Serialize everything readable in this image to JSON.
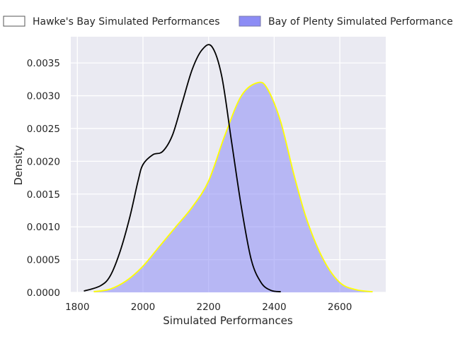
{
  "chart_data": {
    "type": "area",
    "title": "",
    "xlabel": "Simulated Performances",
    "ylabel": "Density",
    "xlim": [
      1780,
      2740
    ],
    "ylim": [
      0,
      0.0039
    ],
    "xticks": [
      1800,
      2000,
      2200,
      2400,
      2600
    ],
    "xtick_labels": [
      "1800",
      "2000",
      "2200",
      "2400",
      "2600"
    ],
    "yticks": [
      0,
      0.0005,
      0.001,
      0.0015,
      0.002,
      0.0025,
      0.003,
      0.0035
    ],
    "ytick_labels": [
      "0.0000",
      "0.0005",
      "0.0010",
      "0.0015",
      "0.0020",
      "0.0025",
      "0.0030",
      "0.0035"
    ],
    "grid": true,
    "legend_position": "top",
    "series": [
      {
        "name": "Hawke's Bay Simulated Performances",
        "style": "line",
        "color": "#000000",
        "fill": "none",
        "x": [
          1820,
          1870,
          1900,
          1930,
          1960,
          1985,
          2000,
          2030,
          2060,
          2090,
          2120,
          2150,
          2180,
          2210,
          2240,
          2270,
          2300,
          2330,
          2360,
          2390,
          2420
        ],
        "y": [
          2e-05,
          0.0001,
          0.00025,
          0.00062,
          0.00115,
          0.0017,
          0.00195,
          0.0021,
          0.00215,
          0.0024,
          0.0029,
          0.0034,
          0.0037,
          0.00375,
          0.0033,
          0.0023,
          0.0013,
          0.0005,
          0.00015,
          3e-05,
          1e-05
        ]
      },
      {
        "name": "Bay of Plenty Simulated Performances",
        "style": "filled",
        "color": "#8c8cf5",
        "edge_color": "#ffff00",
        "x": [
          1850,
          1900,
          1950,
          2000,
          2050,
          2100,
          2150,
          2200,
          2250,
          2300,
          2350,
          2380,
          2420,
          2460,
          2500,
          2550,
          2600,
          2650,
          2700
        ],
        "y": [
          1e-05,
          5e-05,
          0.00018,
          0.0004,
          0.0007,
          0.001,
          0.0013,
          0.0017,
          0.0024,
          0.003,
          0.0032,
          0.0031,
          0.0026,
          0.0018,
          0.0011,
          0.0005,
          0.00015,
          4e-05,
          1e-05
        ]
      }
    ]
  }
}
